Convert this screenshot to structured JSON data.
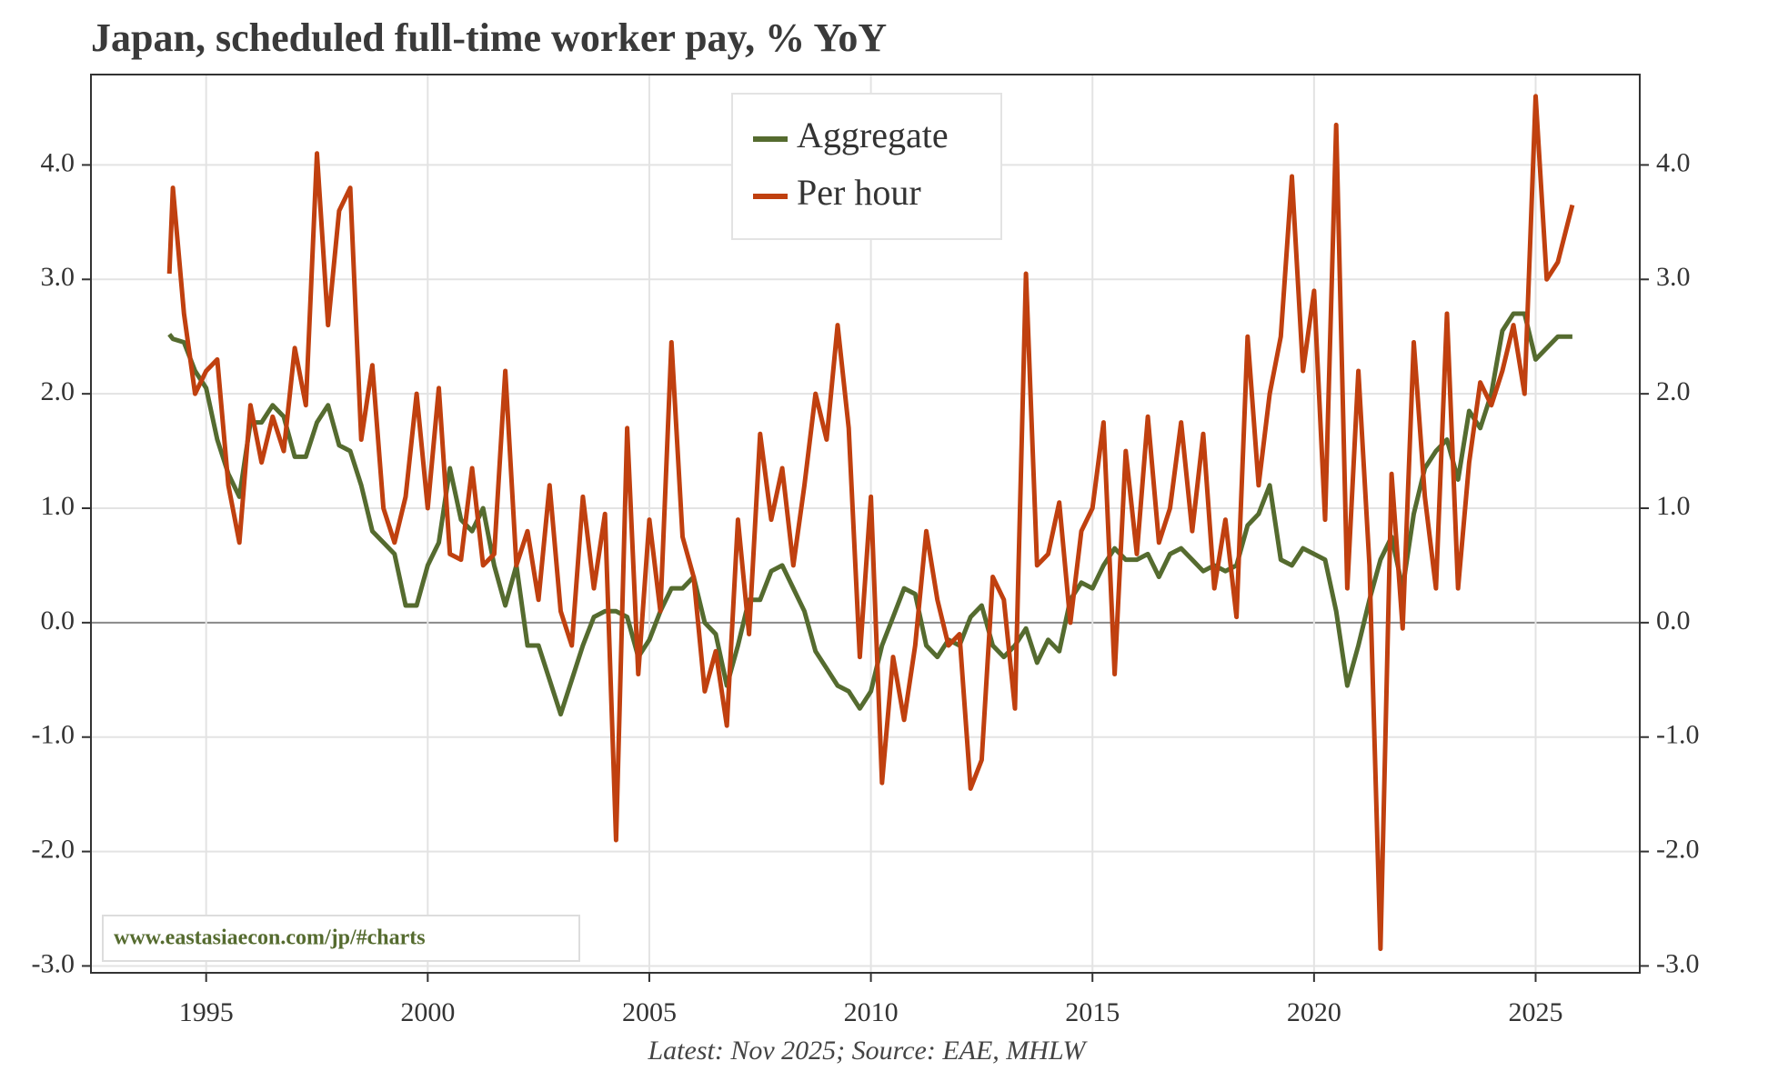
{
  "chart_data": {
    "type": "line",
    "title": "Japan, scheduled full-time worker pay, % YoY",
    "footer": "Latest: Nov 2025; Source: EAE, MHLW",
    "watermark": "www.eastasiaecon.com/jp/#charts",
    "legend_position": "top",
    "grid": true,
    "xlim": [
      1992.4,
      2027.35
    ],
    "xticks": [
      1995,
      2000,
      2005,
      2010,
      2015,
      2020,
      2025
    ],
    "ylim": [
      -3.06,
      4.79
    ],
    "yticks": [
      {
        "value": -3,
        "label": "-3.0"
      },
      {
        "value": -2,
        "label": "-2.0"
      },
      {
        "value": -1,
        "label": "-1.0"
      },
      {
        "value": 0,
        "label": "0.0"
      },
      {
        "value": 1,
        "label": "1.0"
      },
      {
        "value": 2,
        "label": "2.0"
      },
      {
        "value": 3,
        "label": "3.0"
      },
      {
        "value": 4,
        "label": "4.0"
      }
    ],
    "x": [
      1994.17,
      1994.25,
      1994.5,
      1994.75,
      1995,
      1995.25,
      1995.5,
      1995.75,
      1996,
      1996.25,
      1996.5,
      1996.75,
      1997,
      1997.25,
      1997.5,
      1997.75,
      1998,
      1998.25,
      1998.5,
      1998.75,
      1999,
      1999.25,
      1999.5,
      1999.75,
      2000,
      2000.25,
      2000.5,
      2000.75,
      2001,
      2001.25,
      2001.5,
      2001.75,
      2002,
      2002.25,
      2002.5,
      2002.75,
      2003,
      2003.25,
      2003.5,
      2003.75,
      2004,
      2004.25,
      2004.5,
      2004.75,
      2005,
      2005.25,
      2005.5,
      2005.75,
      2006,
      2006.25,
      2006.5,
      2006.75,
      2007,
      2007.25,
      2007.5,
      2007.75,
      2008,
      2008.25,
      2008.5,
      2008.75,
      2009,
      2009.25,
      2009.5,
      2009.75,
      2010,
      2010.25,
      2010.5,
      2010.75,
      2011,
      2011.25,
      2011.5,
      2011.75,
      2012,
      2012.25,
      2012.5,
      2012.75,
      2013,
      2013.25,
      2013.5,
      2013.75,
      2014,
      2014.25,
      2014.5,
      2014.75,
      2015,
      2015.25,
      2015.5,
      2015.75,
      2016,
      2016.25,
      2016.5,
      2016.75,
      2017,
      2017.25,
      2017.5,
      2017.75,
      2018,
      2018.25,
      2018.5,
      2018.75,
      2019,
      2019.25,
      2019.5,
      2019.75,
      2020,
      2020.25,
      2020.5,
      2020.75,
      2021,
      2021.25,
      2021.5,
      2021.75,
      2022,
      2022.25,
      2022.5,
      2022.75,
      2023,
      2023.25,
      2023.5,
      2023.75,
      2024,
      2024.25,
      2024.5,
      2024.75,
      2025,
      2025.25,
      2025.5,
      2025.83
    ],
    "series": [
      {
        "name": "Aggregate",
        "color": "#556b2f",
        "values": [
          2.52,
          2.48,
          2.45,
          2.2,
          2.05,
          1.6,
          1.3,
          1.1,
          1.75,
          1.75,
          1.9,
          1.8,
          1.45,
          1.45,
          1.75,
          1.9,
          1.55,
          1.5,
          1.2,
          0.8,
          0.7,
          0.6,
          0.15,
          0.15,
          0.5,
          0.7,
          1.35,
          0.9,
          0.8,
          1.0,
          0.5,
          0.15,
          0.5,
          -0.2,
          -0.2,
          -0.5,
          -0.8,
          -0.5,
          -0.2,
          0.05,
          0.1,
          0.1,
          0.05,
          -0.3,
          -0.15,
          0.1,
          0.3,
          0.3,
          0.4,
          0.0,
          -0.1,
          -0.55,
          -0.2,
          0.2,
          0.2,
          0.45,
          0.5,
          0.3,
          0.1,
          -0.25,
          -0.4,
          -0.55,
          -0.6,
          -0.75,
          -0.6,
          -0.2,
          0.05,
          0.3,
          0.25,
          -0.2,
          -0.3,
          -0.15,
          -0.2,
          0.05,
          0.15,
          -0.2,
          -0.3,
          -0.2,
          -0.05,
          -0.35,
          -0.15,
          -0.25,
          0.2,
          0.35,
          0.3,
          0.5,
          0.65,
          0.55,
          0.55,
          0.6,
          0.4,
          0.6,
          0.65,
          0.55,
          0.45,
          0.5,
          0.45,
          0.5,
          0.85,
          0.95,
          1.2,
          0.55,
          0.5,
          0.65,
          0.6,
          0.55,
          0.1,
          -0.55,
          -0.2,
          0.2,
          0.55,
          0.75,
          0.3,
          0.95,
          1.35,
          1.5,
          1.6,
          1.25,
          1.85,
          1.7,
          2.0,
          2.55,
          2.7,
          2.7,
          2.3,
          2.4,
          2.5,
          2.5
        ]
      },
      {
        "name": "Per hour",
        "color": "#c0400f",
        "values": [
          3.05,
          3.8,
          2.7,
          2.0,
          2.2,
          2.3,
          1.2,
          0.7,
          1.9,
          1.4,
          1.8,
          1.5,
          2.4,
          1.9,
          4.1,
          2.6,
          3.6,
          3.8,
          1.6,
          2.25,
          1.0,
          0.7,
          1.1,
          2.0,
          1.0,
          2.05,
          0.6,
          0.55,
          1.35,
          0.5,
          0.6,
          2.2,
          0.5,
          0.8,
          0.2,
          1.2,
          0.1,
          -0.2,
          1.1,
          0.3,
          0.95,
          -1.9,
          1.7,
          -0.45,
          0.9,
          0.1,
          2.45,
          0.75,
          0.4,
          -0.6,
          -0.25,
          -0.9,
          0.9,
          -0.1,
          1.65,
          0.9,
          1.35,
          0.5,
          1.2,
          2.0,
          1.6,
          2.6,
          1.7,
          -0.3,
          1.1,
          -1.4,
          -0.3,
          -0.85,
          -0.2,
          0.8,
          0.2,
          -0.2,
          -0.1,
          -1.45,
          -1.2,
          0.4,
          0.2,
          -0.75,
          3.05,
          0.5,
          0.6,
          1.05,
          0.0,
          0.8,
          1.0,
          1.75,
          -0.45,
          1.5,
          0.6,
          1.8,
          0.7,
          1.0,
          1.75,
          0.8,
          1.65,
          0.3,
          0.9,
          0.05,
          2.5,
          1.2,
          2.0,
          2.5,
          3.9,
          2.2,
          2.9,
          0.9,
          4.35,
          0.3,
          2.2,
          0.5,
          -2.85,
          1.3,
          -0.05,
          2.45,
          1.1,
          0.3,
          2.7,
          0.3,
          1.4,
          2.1,
          1.9,
          2.2,
          2.6,
          2.0,
          4.6,
          3.0,
          3.15,
          3.65
        ]
      }
    ]
  }
}
